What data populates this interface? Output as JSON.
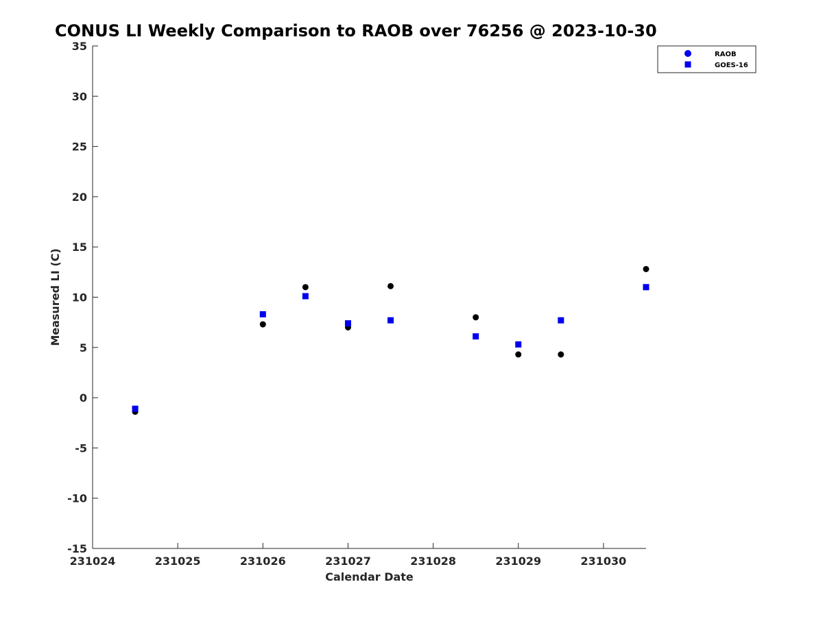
{
  "chart_data": {
    "type": "scatter",
    "title": "CONUS LI Weekly Comparison to RAOB over 76256 @ 2023-10-30",
    "xlabel": "Calendar Date",
    "ylabel": "Measured LI (C)",
    "xlim": [
      231024,
      231030.5
    ],
    "ylim": [
      -15,
      35
    ],
    "xticks": [
      231024,
      231025,
      231026,
      231027,
      231028,
      231029,
      231030
    ],
    "yticks": [
      -15,
      -10,
      -5,
      0,
      5,
      10,
      15,
      20,
      25,
      30,
      35
    ],
    "grid": false,
    "legend_position": "top-right",
    "series": [
      {
        "name": "RAOB",
        "marker": "circle",
        "color": "#000000",
        "legend_color": "#0000ee",
        "x": [
          231024.5,
          231026.0,
          231026.5,
          231027.0,
          231027.5,
          231028.5,
          231029.0,
          231029.5,
          231030.5
        ],
        "y": [
          -1.4,
          7.3,
          11.0,
          7.0,
          11.1,
          8.0,
          4.3,
          4.3,
          12.8
        ]
      },
      {
        "name": "GOES-16",
        "marker": "square",
        "color": "#0000ee",
        "legend_color": "#0000ee",
        "x": [
          231024.5,
          231026.0,
          231026.5,
          231027.0,
          231027.5,
          231028.5,
          231029.0,
          231029.5,
          231030.5
        ],
        "y": [
          -1.1,
          8.3,
          10.1,
          7.4,
          7.7,
          6.1,
          5.3,
          7.7,
          11.0
        ]
      }
    ]
  }
}
